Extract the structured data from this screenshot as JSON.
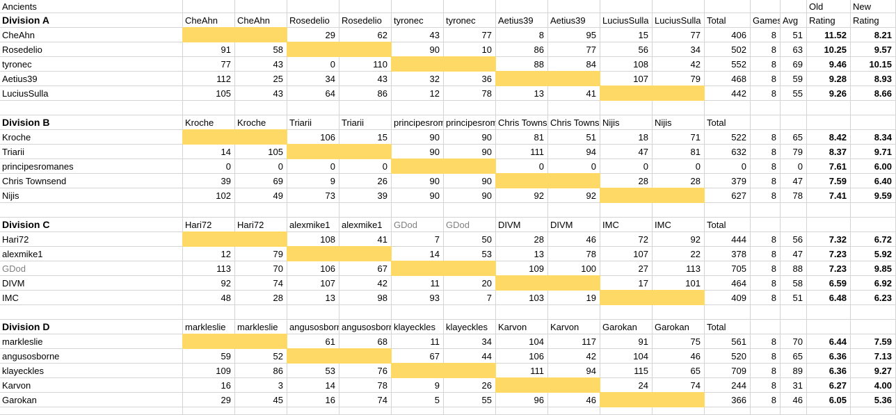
{
  "sheet": {
    "title": "Ancients",
    "stat_headers": {
      "total": "Total",
      "games": "Games",
      "avg": "Avg",
      "old_top": "Old",
      "new_top": "New",
      "old_bottom": "Rating",
      "new_bottom": "Rating"
    },
    "colors": {
      "highlight": "#FFD966",
      "gridline": "#D4D4D4",
      "muted_name": "#808080"
    },
    "muted_players": [
      "GDod"
    ],
    "divisions": [
      {
        "label": "Division A",
        "players": [
          "CheAhn",
          "Rosedelio",
          "tyronec",
          "Aetius39",
          "LuciusSulla"
        ],
        "rows": [
          {
            "name": "CheAhn",
            "scores": [
              null,
              null,
              29,
              62,
              43,
              77,
              8,
              95,
              15,
              77
            ],
            "total": 406,
            "games": 8,
            "avg": 51,
            "old_rating": "11.52",
            "new_rating": "8.21"
          },
          {
            "name": "Rosedelio",
            "scores": [
              91,
              58,
              null,
              null,
              90,
              10,
              86,
              77,
              56,
              34
            ],
            "total": 502,
            "games": 8,
            "avg": 63,
            "old_rating": "10.25",
            "new_rating": "9.57"
          },
          {
            "name": "tyronec",
            "scores": [
              77,
              43,
              0,
              110,
              null,
              null,
              88,
              84,
              108,
              42
            ],
            "total": 552,
            "games": 8,
            "avg": 69,
            "old_rating": "9.46",
            "new_rating": "10.15"
          },
          {
            "name": "Aetius39",
            "scores": [
              112,
              25,
              34,
              43,
              32,
              36,
              null,
              null,
              107,
              79
            ],
            "total": 468,
            "games": 8,
            "avg": 59,
            "old_rating": "9.28",
            "new_rating": "8.93"
          },
          {
            "name": "LuciusSulla",
            "scores": [
              105,
              43,
              64,
              86,
              12,
              78,
              13,
              41,
              null,
              null
            ],
            "total": 442,
            "games": 8,
            "avg": 55,
            "old_rating": "9.26",
            "new_rating": "8.66"
          }
        ]
      },
      {
        "label": "Division B",
        "players": [
          "Kroche",
          "Triarii",
          "principesromanes",
          "Chris Townsend",
          "Nijis"
        ],
        "rows": [
          {
            "name": "Kroche",
            "scores": [
              null,
              null,
              106,
              15,
              90,
              90,
              81,
              51,
              18,
              71
            ],
            "total": 522,
            "games": 8,
            "avg": 65,
            "old_rating": "8.42",
            "new_rating": "8.34"
          },
          {
            "name": "Triarii",
            "scores": [
              14,
              105,
              null,
              null,
              90,
              90,
              111,
              94,
              47,
              81
            ],
            "total": 632,
            "games": 8,
            "avg": 79,
            "old_rating": "8.37",
            "new_rating": "9.71"
          },
          {
            "name": "principesromanes",
            "scores": [
              0,
              0,
              0,
              0,
              null,
              null,
              0,
              0,
              0,
              0
            ],
            "total": 0,
            "games": 8,
            "avg": 0,
            "old_rating": "7.61",
            "new_rating": "6.00"
          },
          {
            "name": "Chris Townsend",
            "scores": [
              39,
              69,
              9,
              26,
              90,
              90,
              null,
              null,
              28,
              28
            ],
            "total": 379,
            "games": 8,
            "avg": 47,
            "old_rating": "7.59",
            "new_rating": "6.40"
          },
          {
            "name": "Nijis",
            "scores": [
              102,
              49,
              73,
              39,
              90,
              90,
              92,
              92,
              null,
              null
            ],
            "total": 627,
            "games": 8,
            "avg": 78,
            "old_rating": "7.41",
            "new_rating": "9.59"
          }
        ]
      },
      {
        "label": "Division C",
        "players": [
          "Hari72",
          "alexmike1",
          "GDod",
          "DIVM",
          "IMC"
        ],
        "rows": [
          {
            "name": "Hari72",
            "scores": [
              null,
              null,
              108,
              41,
              7,
              50,
              28,
              46,
              72,
              92
            ],
            "total": 444,
            "games": 8,
            "avg": 56,
            "old_rating": "7.32",
            "new_rating": "6.72"
          },
          {
            "name": "alexmike1",
            "scores": [
              12,
              79,
              null,
              null,
              14,
              53,
              13,
              78,
              107,
              22
            ],
            "total": 378,
            "games": 8,
            "avg": 47,
            "old_rating": "7.23",
            "new_rating": "5.92"
          },
          {
            "name": "GDod",
            "scores": [
              113,
              70,
              106,
              67,
              null,
              null,
              109,
              100,
              27,
              113
            ],
            "total": 705,
            "games": 8,
            "avg": 88,
            "old_rating": "7.23",
            "new_rating": "9.85"
          },
          {
            "name": "DIVM",
            "scores": [
              92,
              74,
              107,
              42,
              11,
              20,
              null,
              null,
              17,
              101
            ],
            "total": 464,
            "games": 8,
            "avg": 58,
            "old_rating": "6.59",
            "new_rating": "6.92"
          },
          {
            "name": "IMC",
            "scores": [
              48,
              28,
              13,
              98,
              93,
              7,
              103,
              19,
              null,
              null
            ],
            "total": 409,
            "games": 8,
            "avg": 51,
            "old_rating": "6.48",
            "new_rating": "6.23"
          }
        ]
      },
      {
        "label": "Division D",
        "players": [
          "markleslie",
          "angusosborne",
          "klayeckles",
          "Karvon",
          "Garokan"
        ],
        "rows": [
          {
            "name": "markleslie",
            "scores": [
              null,
              null,
              61,
              68,
              11,
              34,
              104,
              117,
              91,
              75
            ],
            "total": 561,
            "games": 8,
            "avg": 70,
            "old_rating": "6.44",
            "new_rating": "7.59"
          },
          {
            "name": "angusosborne",
            "scores": [
              59,
              52,
              null,
              null,
              67,
              44,
              106,
              42,
              104,
              46
            ],
            "total": 520,
            "games": 8,
            "avg": 65,
            "old_rating": "6.36",
            "new_rating": "7.13"
          },
          {
            "name": "klayeckles",
            "scores": [
              109,
              86,
              53,
              76,
              null,
              null,
              111,
              94,
              115,
              65
            ],
            "total": 709,
            "games": 8,
            "avg": 89,
            "old_rating": "6.36",
            "new_rating": "9.27"
          },
          {
            "name": "Karvon",
            "scores": [
              16,
              3,
              14,
              78,
              9,
              26,
              null,
              null,
              24,
              74
            ],
            "total": 244,
            "games": 8,
            "avg": 31,
            "old_rating": "6.27",
            "new_rating": "4.00"
          },
          {
            "name": "Garokan",
            "scores": [
              29,
              45,
              16,
              74,
              5,
              55,
              96,
              46,
              null,
              null
            ],
            "total": 366,
            "games": 8,
            "avg": 46,
            "old_rating": "6.05",
            "new_rating": "5.36"
          }
        ]
      }
    ]
  }
}
